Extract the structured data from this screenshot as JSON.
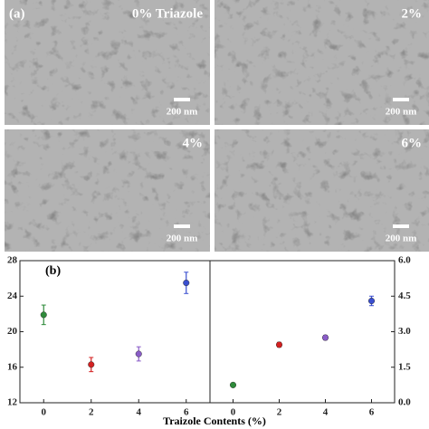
{
  "sem_panels": {
    "panel_label": "(a)",
    "panels": [
      {
        "label": "0% Triazole",
        "scale_bar": "200 nm"
      },
      {
        "label": "2%",
        "scale_bar": "200 nm"
      },
      {
        "label": "4%",
        "scale_bar": "200 nm"
      },
      {
        "label": "6%",
        "scale_bar": "200 nm"
      }
    ]
  },
  "chart_data": [
    {
      "type": "scatter",
      "panel_label": "(b)",
      "xlabel": "Traizole Contents (%)",
      "x": [
        0,
        2,
        4,
        6
      ],
      "values": [
        21.9,
        16.3,
        17.5,
        25.5
      ],
      "errors": [
        1.1,
        0.8,
        0.8,
        1.2
      ],
      "colors": [
        "#2e8b3a",
        "#d42020",
        "#8a5cc8",
        "#3a4fd0"
      ],
      "xlim": [
        -1,
        7
      ],
      "xticks": [
        0,
        2,
        4,
        6
      ],
      "ylim": [
        12,
        28
      ],
      "yticks": [
        12,
        16,
        20,
        24,
        28
      ]
    },
    {
      "type": "scatter",
      "x": [
        0,
        2,
        4,
        6
      ],
      "values": [
        0.75,
        2.45,
        2.75,
        4.3
      ],
      "errors": [
        0.08,
        0.1,
        0.1,
        0.2
      ],
      "colors": [
        "#2e8b3a",
        "#d42020",
        "#8a5cc8",
        "#3a4fd0"
      ],
      "xlim": [
        -1,
        7
      ],
      "xticks": [
        0,
        2,
        4,
        6
      ],
      "y2lim": [
        0,
        6
      ],
      "y2ticks": [
        {
          "value": 0,
          "label": "0.0"
        },
        {
          "value": 1.5,
          "label": "1.5"
        },
        {
          "value": 3,
          "label": "3.0"
        },
        {
          "value": 4.5,
          "label": "4.5"
        },
        {
          "value": 6,
          "label": "6.0"
        }
      ]
    }
  ]
}
